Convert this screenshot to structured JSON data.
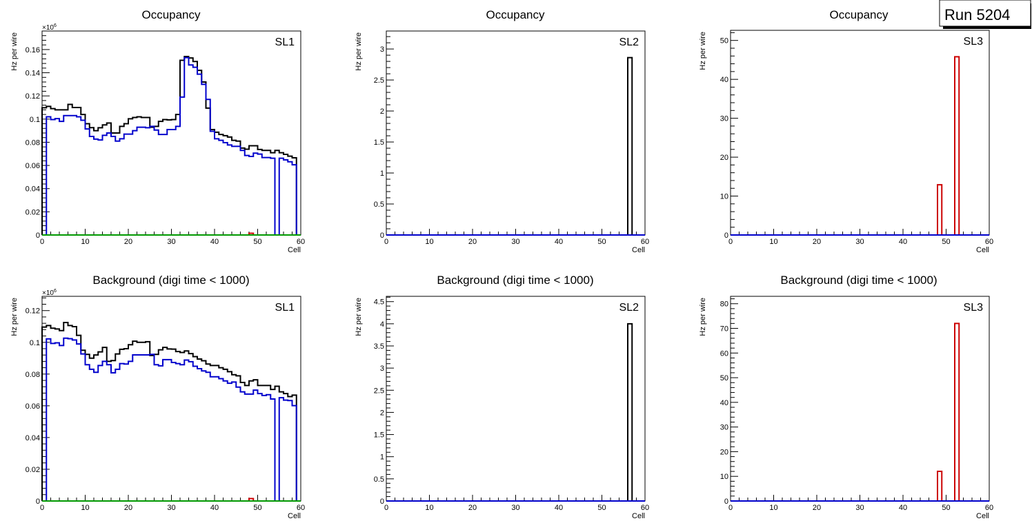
{
  "run_label": "Run 5204",
  "chart_data": [
    {
      "type": "bar",
      "title": "Occupancy",
      "tag": "SL1",
      "xlabel": "Cell",
      "ylabel": "Hz per wire",
      "exponent": "×10",
      "exponent_power": "6",
      "xlim": [
        0,
        60
      ],
      "ylim": [
        0,
        0.176
      ],
      "xticks": [
        "0",
        "10",
        "20",
        "30",
        "40",
        "50",
        "60"
      ],
      "yticks": [
        "0",
        "0.02",
        "0.04",
        "0.06",
        "0.08",
        "0.1",
        "0.12",
        "0.14",
        "0.16"
      ],
      "ytick_step": 0.02,
      "series": [
        {
          "name": "black",
          "color": "#000000",
          "values": [
            0.1098,
            0.111,
            0.109,
            0.108,
            0.108,
            0.108,
            0.1127,
            0.11,
            0.11,
            0.104,
            0.096,
            0.0926,
            0.09,
            0.0925,
            0.095,
            0.0966,
            0.088,
            0.088,
            0.0937,
            0.096,
            0.1003,
            0.1014,
            0.102,
            0.1014,
            0.1014,
            0.093,
            0.0937,
            0.098,
            0.0996,
            0.0993,
            0.0996,
            0.104,
            0.1507,
            0.154,
            0.1527,
            0.1497,
            0.142,
            0.132,
            0.1095,
            0.091,
            0.0887,
            0.0867,
            0.0857,
            0.0845,
            0.0817,
            0.081,
            0.075,
            0.074,
            0.077,
            0.077,
            0.0738,
            0.073,
            0.073,
            0.071,
            0.073,
            0.071,
            0.0696,
            0.068,
            0.0666,
            0
          ]
        },
        {
          "name": "blue",
          "color": "#0000cc",
          "values": [
            0,
            0.102,
            0.0996,
            0.1004,
            0.098,
            0.103,
            0.103,
            0.103,
            0.102,
            0.099,
            0.0915,
            0.085,
            0.0827,
            0.082,
            0.086,
            0.088,
            0.085,
            0.081,
            0.083,
            0.087,
            0.087,
            0.09,
            0.093,
            0.093,
            0.0925,
            0.0937,
            0.0905,
            0.0867,
            0.0867,
            0.091,
            0.091,
            0.0937,
            0.119,
            0.153,
            0.1467,
            0.1447,
            0.1388,
            0.13,
            0.117,
            0.0895,
            0.083,
            0.0817,
            0.0797,
            0.0777,
            0.0765,
            0.0765,
            0.073,
            0.0686,
            0.0678,
            0.0706,
            0.0698,
            0.0668,
            0.0668,
            0.0662,
            0,
            0.0662,
            0.0648,
            0.0632,
            0.0606,
            0
          ]
        },
        {
          "name": "red",
          "color": "#cc0000",
          "nonzero": {
            "48": 0.0015
          }
        },
        {
          "name": "green",
          "color": "#009900",
          "nonzero": {}
        }
      ]
    },
    {
      "type": "bar",
      "title": "Occupancy",
      "tag": "SL2",
      "xlabel": "Cell",
      "ylabel": "Hz per wire",
      "xlim": [
        0,
        60
      ],
      "ylim": [
        0,
        3.29
      ],
      "xticks": [
        "0",
        "10",
        "20",
        "30",
        "40",
        "50",
        "60"
      ],
      "yticks": [
        "0",
        "0.5",
        "1",
        "1.5",
        "2",
        "2.5",
        "3"
      ],
      "ytick_step": 0.5,
      "series": [
        {
          "name": "black",
          "color": "#000000",
          "nonzero": {
            "56": 2.86
          }
        },
        {
          "name": "blue",
          "color": "#0000cc",
          "nonzero": {}
        }
      ]
    },
    {
      "type": "bar",
      "title": "Occupancy",
      "tag": "SL3",
      "xlabel": "Cell",
      "ylabel": "Hz per wire",
      "xlim": [
        0,
        60
      ],
      "ylim": [
        0,
        52.6
      ],
      "xticks": [
        "0",
        "10",
        "20",
        "30",
        "40",
        "50",
        "60"
      ],
      "yticks": [
        "0",
        "10",
        "20",
        "30",
        "40",
        "50"
      ],
      "ytick_step": 10,
      "series": [
        {
          "name": "red",
          "color": "#cc0000",
          "nonzero": {
            "48": 12.9,
            "52": 45.8
          }
        },
        {
          "name": "blue",
          "color": "#0000cc",
          "nonzero": {}
        }
      ]
    },
    {
      "type": "bar",
      "title": "Background (digi time < 1000)",
      "tag": "SL1",
      "xlabel": "Cell",
      "ylabel": "Hz per wire",
      "exponent": "×10",
      "exponent_power": "6",
      "xlim": [
        0,
        60
      ],
      "ylim": [
        0,
        0.129
      ],
      "xticks": [
        "0",
        "10",
        "20",
        "30",
        "40",
        "50",
        "60"
      ],
      "yticks": [
        "0",
        "0.02",
        "0.04",
        "0.06",
        "0.08",
        "0.1",
        "0.12"
      ],
      "ytick_step": 0.02,
      "series": [
        {
          "name": "black",
          "color": "#000000",
          "values": [
            0.1096,
            0.1106,
            0.1089,
            0.1084,
            0.1074,
            0.1125,
            0.1106,
            0.1099,
            0.1044,
            0.095,
            0.0924,
            0.09,
            0.092,
            0.094,
            0.0968,
            0.088,
            0.0885,
            0.0927,
            0.0956,
            0.096,
            0.0985,
            0.1007,
            0.1,
            0.1,
            0.1004,
            0.0917,
            0.0924,
            0.0953,
            0.0968,
            0.0958,
            0.0957,
            0.0942,
            0.0936,
            0.0946,
            0.0929,
            0.091,
            0.0895,
            0.0884,
            0.0863,
            0.0854,
            0.0854,
            0.084,
            0.083,
            0.0815,
            0.0796,
            0.0789,
            0.0747,
            0.0728,
            0.0757,
            0.0764,
            0.0728,
            0.0728,
            0.0728,
            0.0703,
            0.0723,
            0.0688,
            0.0677,
            0.0658,
            0.0667,
            0
          ]
        },
        {
          "name": "blue",
          "color": "#0000cc",
          "values": [
            0,
            0.1022,
            0.0993,
            0.0997,
            0.098,
            0.1026,
            0.1023,
            0.1015,
            0.099,
            0.0927,
            0.0859,
            0.083,
            0.0811,
            0.0854,
            0.088,
            0.0859,
            0.0808,
            0.083,
            0.0866,
            0.0863,
            0.088,
            0.0921,
            0.0921,
            0.0921,
            0.0921,
            0.0924,
            0.0859,
            0.0852,
            0.0891,
            0.0891,
            0.0873,
            0.0866,
            0.0859,
            0.0888,
            0.0878,
            0.0849,
            0.0834,
            0.082,
            0.0811,
            0.0783,
            0.0783,
            0.0771,
            0.0757,
            0.0742,
            0.075,
            0.0718,
            0.0688,
            0.0674,
            0.0674,
            0.0699,
            0.0677,
            0.0665,
            0.067,
            0.0643,
            0,
            0.0651,
            0.0636,
            0.0633,
            0.0601,
            0
          ]
        },
        {
          "name": "red",
          "color": "#cc0000",
          "nonzero": {
            "48": 0.0015
          }
        },
        {
          "name": "green",
          "color": "#009900",
          "nonzero": {}
        }
      ]
    },
    {
      "type": "bar",
      "title": "Background (digi time < 1000)",
      "tag": "SL2",
      "xlabel": "Cell",
      "ylabel": "Hz per wire",
      "xlim": [
        0,
        60
      ],
      "ylim": [
        0,
        4.62
      ],
      "xticks": [
        "0",
        "10",
        "20",
        "30",
        "40",
        "50",
        "60"
      ],
      "yticks": [
        "0",
        "0.5",
        "1",
        "1.5",
        "2",
        "2.5",
        "3",
        "3.5",
        "4",
        "4.5"
      ],
      "ytick_step": 0.5,
      "series": [
        {
          "name": "black",
          "color": "#000000",
          "nonzero": {
            "56": 4.0
          }
        },
        {
          "name": "blue",
          "color": "#0000cc",
          "nonzero": {}
        }
      ]
    },
    {
      "type": "bar",
      "title": "Background (digi time < 1000)",
      "tag": "SL3",
      "xlabel": "Cell",
      "ylabel": "Hz per wire",
      "xlim": [
        0,
        60
      ],
      "ylim": [
        0,
        83
      ],
      "xticks": [
        "0",
        "10",
        "20",
        "30",
        "40",
        "50",
        "60"
      ],
      "yticks": [
        "0",
        "10",
        "20",
        "30",
        "40",
        "50",
        "60",
        "70",
        "80"
      ],
      "ytick_step": 10,
      "series": [
        {
          "name": "red",
          "color": "#cc0000",
          "nonzero": {
            "48": 12.0,
            "52": 72.0
          }
        },
        {
          "name": "blue",
          "color": "#0000cc",
          "nonzero": {}
        }
      ]
    }
  ]
}
